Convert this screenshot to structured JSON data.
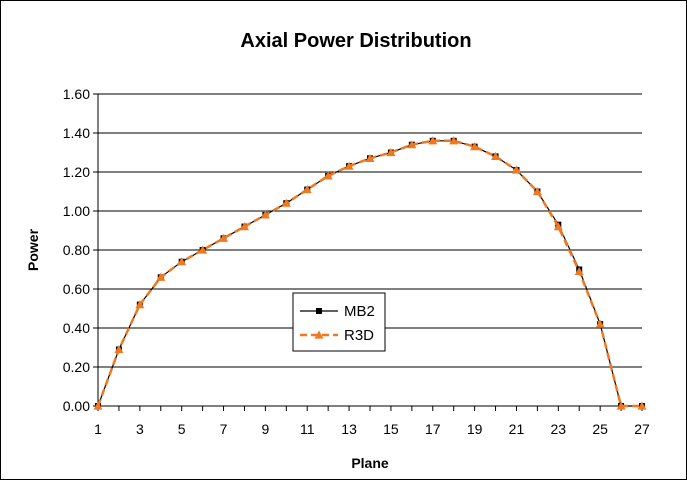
{
  "chart_data": {
    "type": "line",
    "title": "Axial Power Distribution",
    "xlabel": "Plane",
    "ylabel": "Power",
    "xlim": [
      1,
      27
    ],
    "ylim": [
      0,
      1.6
    ],
    "x_ticks": [
      "1",
      "3",
      "5",
      "7",
      "9",
      "11",
      "13",
      "15",
      "17",
      "19",
      "21",
      "23",
      "25",
      "27"
    ],
    "y_ticks": [
      "0.00",
      "0.20",
      "0.40",
      "0.60",
      "0.80",
      "1.00",
      "1.20",
      "1.40",
      "1.60"
    ],
    "grid": "horizontal",
    "legend_position": "lower-center",
    "x": [
      1,
      2,
      3,
      4,
      5,
      6,
      7,
      8,
      9,
      10,
      11,
      12,
      13,
      14,
      15,
      16,
      17,
      18,
      19,
      20,
      21,
      22,
      23,
      24,
      25,
      26,
      27
    ],
    "series": [
      {
        "name": "MB2",
        "color": "#000000",
        "marker": "square",
        "values": [
          0.0,
          0.29,
          0.52,
          0.66,
          0.74,
          0.8,
          0.86,
          0.92,
          0.98,
          1.04,
          1.11,
          1.18,
          1.23,
          1.27,
          1.3,
          1.34,
          1.36,
          1.36,
          1.33,
          1.28,
          1.21,
          1.1,
          0.93,
          0.7,
          0.42,
          0.0,
          0.0
        ]
      },
      {
        "name": "R3D",
        "color": "#f07820",
        "marker": "triangle",
        "values": [
          0.0,
          0.29,
          0.52,
          0.66,
          0.74,
          0.8,
          0.86,
          0.92,
          0.98,
          1.04,
          1.11,
          1.18,
          1.23,
          1.27,
          1.3,
          1.34,
          1.36,
          1.36,
          1.33,
          1.28,
          1.21,
          1.1,
          0.92,
          0.69,
          0.42,
          0.0,
          0.0
        ]
      }
    ]
  }
}
